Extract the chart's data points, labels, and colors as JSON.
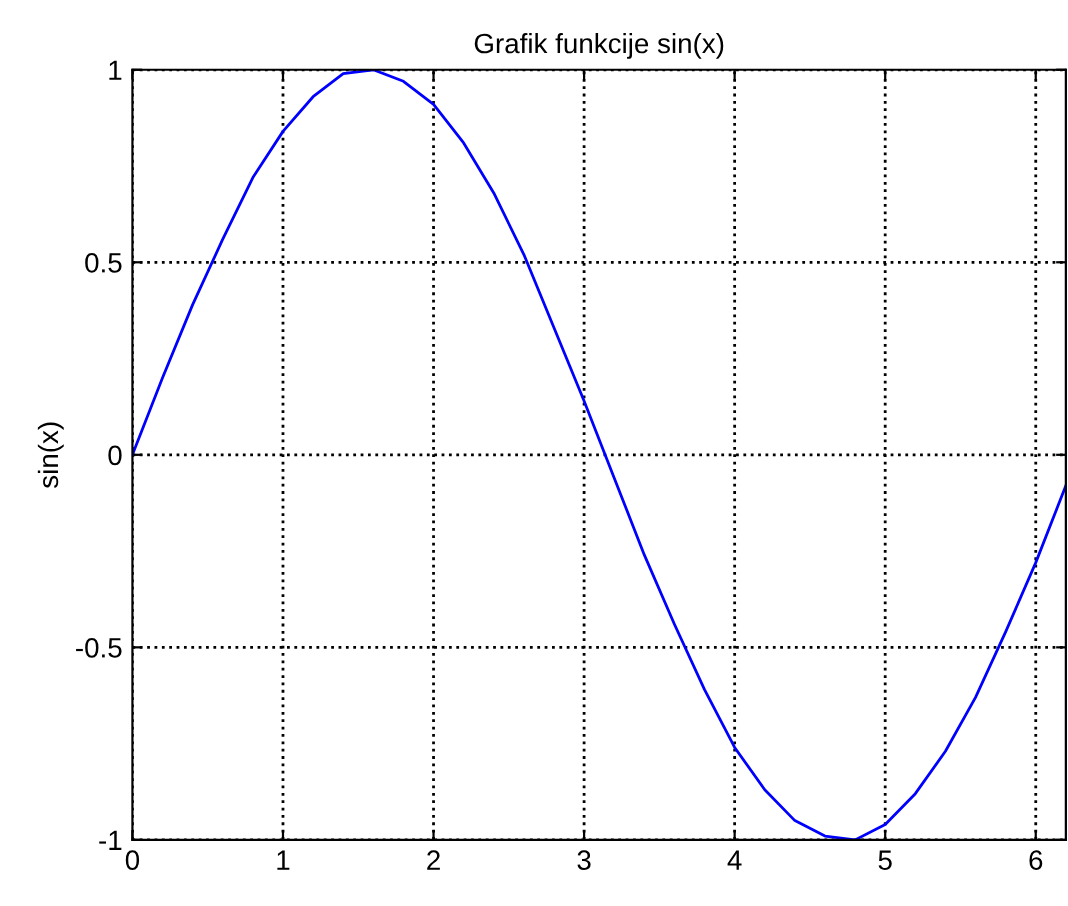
{
  "chart_data": {
    "type": "line",
    "title": "Grafik funkcije sin(x)",
    "ylabel": "sin(x)",
    "x": [
      0,
      0.2,
      0.4,
      0.6,
      0.8,
      1.0,
      1.2,
      1.4,
      1.6,
      1.8,
      2.0,
      2.2,
      2.4,
      2.6,
      2.8,
      3.0,
      3.2,
      3.4,
      3.6,
      3.8,
      4.0,
      4.2,
      4.4,
      4.6,
      4.8,
      5.0,
      5.2,
      5.4,
      5.6,
      5.8,
      6.0,
      6.2
    ],
    "series": [
      {
        "color": "#0000ff",
        "values": [
          0,
          0.2,
          0.39,
          0.56,
          0.72,
          0.84,
          0.93,
          0.99,
          1.0,
          0.97,
          0.91,
          0.81,
          0.68,
          0.52,
          0.33,
          0.14,
          -0.06,
          -0.26,
          -0.44,
          -0.61,
          -0.76,
          -0.87,
          -0.95,
          -0.99,
          -1.0,
          -0.96,
          -0.88,
          -0.77,
          -0.63,
          -0.46,
          -0.28,
          -0.08
        ]
      }
    ],
    "xlim": [
      0,
      6.2
    ],
    "xticks": [
      0,
      1,
      2,
      3,
      4,
      5,
      6
    ],
    "ylim": [
      -1,
      1
    ],
    "yticks": [
      -1,
      -0.5,
      0,
      0.5,
      1
    ],
    "grid": true,
    "line_style": "solid"
  }
}
